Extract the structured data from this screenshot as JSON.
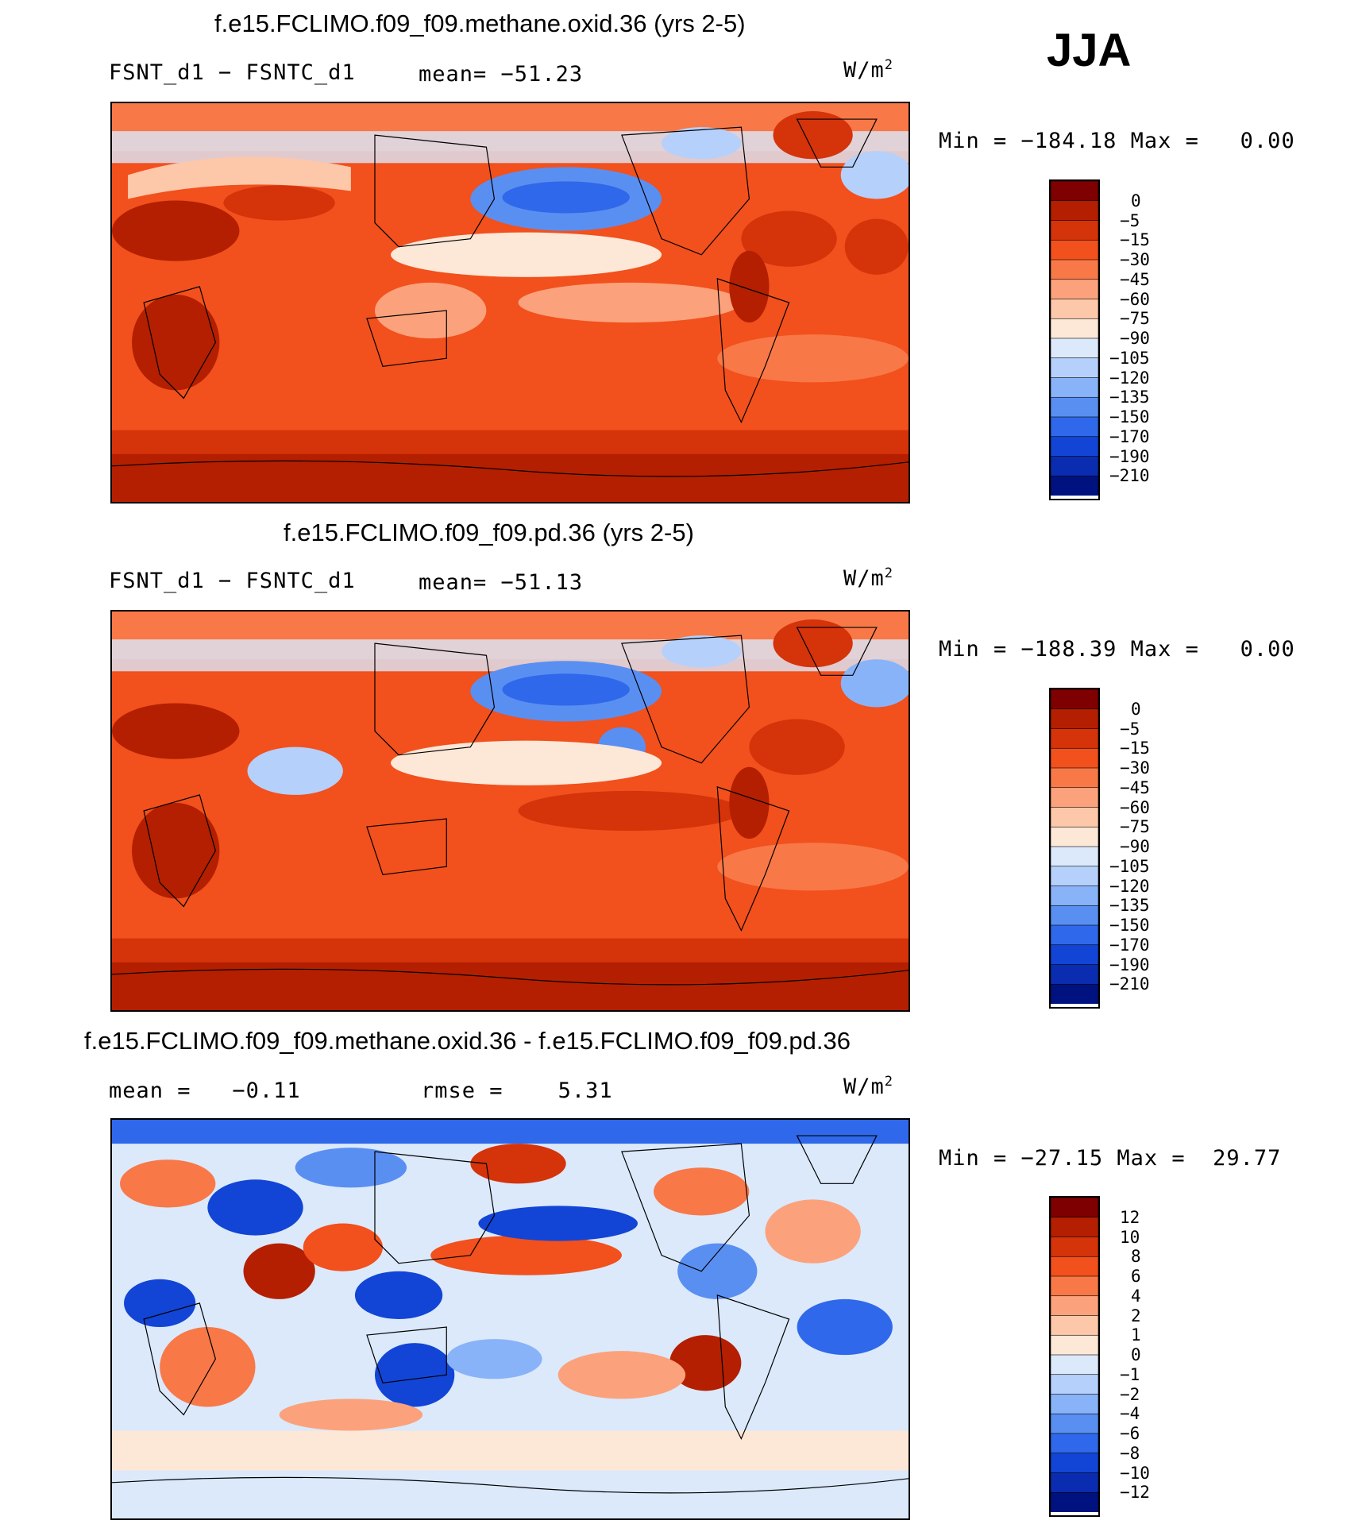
{
  "season": "JJA",
  "panels": [
    {
      "title": "f.e15.FCLIMO.f09_f09.methane.oxid.36 (yrs 2-5)",
      "variable": "FSNT_d1 − FSNTC_d1",
      "stat_label": "mean=",
      "stat_value": "−51.23",
      "units": "W/m",
      "units_sup": "2",
      "min_label": "Min =",
      "min_value": "−184.18",
      "max_label": "Max =",
      "max_value": "0.00",
      "colorbar": [
        "0",
        "−5",
        "−15",
        "−30",
        "−45",
        "−60",
        "−75",
        "−90",
        "−105",
        "−120",
        "−135",
        "−150",
        "−170",
        "−190",
        "−210"
      ]
    },
    {
      "title": "f.e15.FCLIMO.f09_f09.pd.36 (yrs 2-5)",
      "variable": "FSNT_d1 − FSNTC_d1",
      "stat_label": "mean=",
      "stat_value": "−51.13",
      "units": "W/m",
      "units_sup": "2",
      "min_label": "Min =",
      "min_value": "−188.39",
      "max_label": "Max =",
      "max_value": "0.00",
      "colorbar": [
        "0",
        "−5",
        "−15",
        "−30",
        "−45",
        "−60",
        "−75",
        "−90",
        "−105",
        "−120",
        "−135",
        "−150",
        "−170",
        "−190",
        "−210"
      ]
    },
    {
      "title": "f.e15.FCLIMO.f09_f09.methane.oxid.36 - f.e15.FCLIMO.f09_f09.pd.36",
      "mean_label": "mean =",
      "mean_value": "−0.11",
      "rmse_label": "rmse =",
      "rmse_value": "5.31",
      "units": "W/m",
      "units_sup": "2",
      "min_label": "Min =",
      "min_value": "−27.15",
      "max_label": "Max =",
      "max_value": "29.77",
      "colorbar": [
        "12",
        "10",
        "8",
        "6",
        "4",
        "2",
        "1",
        "0",
        "−1",
        "−2",
        "−4",
        "−6",
        "−8",
        "−10",
        "−12"
      ]
    }
  ],
  "colors": {
    "scale16": [
      "#7f0000",
      "#b31f00",
      "#d5330a",
      "#f2501c",
      "#f87848",
      "#fba27c",
      "#fdc7a9",
      "#fde7d7",
      "#dbe9fb",
      "#b5d0fb",
      "#89b3f8",
      "#5a8ff2",
      "#2f68ea",
      "#1245d6",
      "#0a2cb0",
      "#00127f"
    ]
  }
}
